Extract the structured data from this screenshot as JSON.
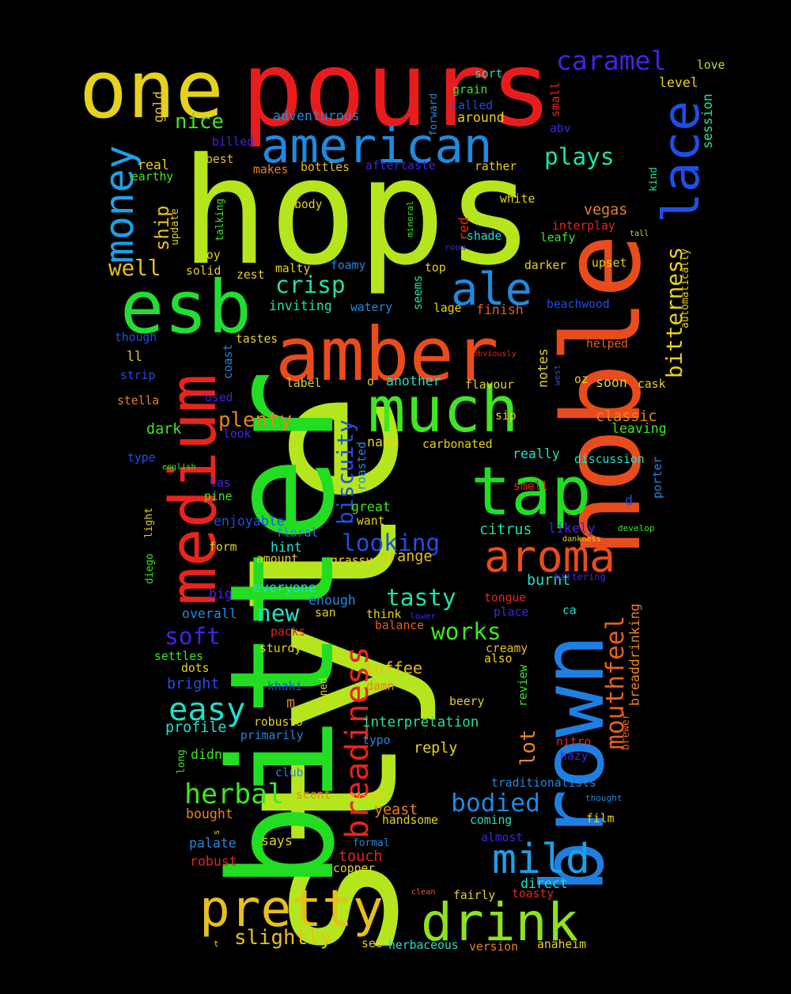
{
  "words": [
    {
      "text": "style",
      "color": "#b5e61d"
    },
    {
      "text": "bitter",
      "color": "#22dd22"
    },
    {
      "text": "hops",
      "color": "#b5e61d"
    },
    {
      "text": "noble",
      "color": "#e84c1c"
    },
    {
      "text": "pours",
      "color": "#e81c1c"
    },
    {
      "text": "amber",
      "color": "#e84c1c"
    },
    {
      "text": "brown",
      "color": "#1f7fe0"
    },
    {
      "text": "one",
      "color": "#e6d21c"
    },
    {
      "text": "esb",
      "color": "#22dd33"
    },
    {
      "text": "medium",
      "color": "#e8241c"
    },
    {
      "text": "tap",
      "color": "#22dd22"
    },
    {
      "text": "much",
      "color": "#3fe622"
    },
    {
      "text": "american",
      "color": "#1f8ae0"
    },
    {
      "text": "drink",
      "color": "#8fe21d"
    },
    {
      "text": "pretty",
      "color": "#e6c01c"
    },
    {
      "text": "lace",
      "color": "#1f4fe6"
    },
    {
      "text": "ale",
      "color": "#1f8ae0"
    },
    {
      "text": "aroma",
      "color": "#e84c1c"
    },
    {
      "text": "mild",
      "color": "#1fa0e6"
    },
    {
      "text": "money",
      "color": "#1fa0e6"
    },
    {
      "text": "breadiness",
      "color": "#e8241c"
    },
    {
      "text": "caramel",
      "color": "#4422e6"
    },
    {
      "text": "mouthfeel",
      "color": "#e8601c"
    },
    {
      "text": "bitterness",
      "color": "#e6d21c"
    },
    {
      "text": "easy",
      "color": "#1fe0cc"
    },
    {
      "text": "herbal",
      "color": "#3fe622"
    },
    {
      "text": "bodied",
      "color": "#1f8ae0"
    },
    {
      "text": "tasty",
      "color": "#1fe0aa"
    },
    {
      "text": "works",
      "color": "#3fe622"
    },
    {
      "text": "looking",
      "color": "#1f4fe6"
    },
    {
      "text": "biscuity",
      "color": "#1f4fe6"
    },
    {
      "text": "soft",
      "color": "#4422e6"
    },
    {
      "text": "new",
      "color": "#1fe0cc"
    },
    {
      "text": "plays",
      "color": "#1fe0aa"
    },
    {
      "text": "crisp",
      "color": "#1fe0aa"
    },
    {
      "text": "well",
      "color": "#e6c01c"
    },
    {
      "text": "slightly",
      "color": "#e6c01c"
    },
    {
      "text": "plenty",
      "color": "#e8841c"
    },
    {
      "text": "nice",
      "color": "#3fe622"
    },
    {
      "text": "lot",
      "color": "#e8841c"
    },
    {
      "text": "ship",
      "color": "#e6c01c"
    },
    {
      "text": "toffee",
      "color": "#e6c01c"
    },
    {
      "text": "classic",
      "color": "#e8841c"
    },
    {
      "text": "vegas",
      "color": "#e8841c"
    },
    {
      "text": "yeast",
      "color": "#e8841c"
    },
    {
      "text": "touch",
      "color": "#e8241c"
    },
    {
      "text": "reply",
      "color": "#e6d21c"
    },
    {
      "text": "breaddrinking",
      "color": "#e8841c"
    },
    {
      "text": "interpretation",
      "color": "#1fe0aa"
    },
    {
      "text": "m",
      "color": "#e8841c"
    },
    {
      "text": "dark",
      "color": "#3fe622"
    },
    {
      "text": "citrus",
      "color": "#1fe0aa"
    },
    {
      "text": "orange",
      "color": "#e6c01c"
    },
    {
      "text": "burnt",
      "color": "#1fe0cc"
    },
    {
      "text": "direct",
      "color": "#1fe0cc"
    },
    {
      "text": "traditionalists",
      "color": "#1f8ae0"
    },
    {
      "text": "adventurous",
      "color": "#1f8ae0"
    },
    {
      "text": "gold",
      "color": "#e6c01c"
    },
    {
      "text": "real",
      "color": "#e6d21c"
    },
    {
      "text": "around",
      "color": "#e6d21c"
    },
    {
      "text": "level",
      "color": "#e6d21c"
    },
    {
      "text": "session",
      "color": "#1fe0aa"
    },
    {
      "text": "kind",
      "color": "#1fe0aa"
    },
    {
      "text": "love",
      "color": "#b5e61d"
    },
    {
      "text": "sort",
      "color": "#1fe0aa"
    },
    {
      "text": "grain",
      "color": "#3fe622"
    },
    {
      "text": "called",
      "color": "#1f4fe6"
    },
    {
      "text": "forward",
      "color": "#1f8ae0"
    },
    {
      "text": "small",
      "color": "#e8241c"
    },
    {
      "text": "abv",
      "color": "#4422e6"
    },
    {
      "text": "best",
      "color": "#e6c01c"
    },
    {
      "text": "billed",
      "color": "#4422e6"
    },
    {
      "text": "earthy",
      "color": "#3fe622"
    },
    {
      "text": "makes",
      "color": "#e8841c"
    },
    {
      "text": "bottles",
      "color": "#e6c01c"
    },
    {
      "text": "aftertaste",
      "color": "#4422e6"
    },
    {
      "text": "rather",
      "color": "#e6d21c"
    },
    {
      "text": "update",
      "color": "#e6d21c"
    },
    {
      "text": "talking",
      "color": "#3fe622"
    },
    {
      "text": "body",
      "color": "#e6d21c"
    },
    {
      "text": "mineral",
      "color": "#3fe622"
    },
    {
      "text": "red",
      "color": "#e8241c"
    },
    {
      "text": "white",
      "color": "#e6d21c"
    },
    {
      "text": "interplay",
      "color": "#e8241c"
    },
    {
      "text": "leafy",
      "color": "#3fe622"
    },
    {
      "text": "tall",
      "color": "#e6d21c"
    },
    {
      "text": "automatically",
      "color": "#e6d21c"
    },
    {
      "text": "shade",
      "color": "#1fe0cc"
    },
    {
      "text": "room",
      "color": "#4422e6"
    },
    {
      "text": "joy",
      "color": "#e6d21c"
    },
    {
      "text": "solid",
      "color": "#e6d21c"
    },
    {
      "text": "zest",
      "color": "#e6d21c"
    },
    {
      "text": "malty",
      "color": "#e6d21c"
    },
    {
      "text": "foamy",
      "color": "#1f8ae0"
    },
    {
      "text": "top",
      "color": "#e6d21c"
    },
    {
      "text": "darker",
      "color": "#e6d21c"
    },
    {
      "text": "upset",
      "color": "#e6d21c"
    },
    {
      "text": "inviting",
      "color": "#1fe0aa"
    },
    {
      "text": "watery",
      "color": "#1f8ae0"
    },
    {
      "text": "seems",
      "color": "#1fe0aa"
    },
    {
      "text": "lage",
      "color": "#e6d21c"
    },
    {
      "text": "finish",
      "color": "#e8601c"
    },
    {
      "text": "beachwood",
      "color": "#1f4fe6"
    },
    {
      "text": "though",
      "color": "#1f4fe6"
    },
    {
      "text": "tastes",
      "color": "#e6d21c"
    },
    {
      "text": "coast",
      "color": "#1f8ae0"
    },
    {
      "text": "obviously",
      "color": "#e8241c"
    },
    {
      "text": "helped",
      "color": "#e8601c"
    },
    {
      "text": "west",
      "color": "#1f4fe6"
    },
    {
      "text": "notes",
      "color": "#e6d21c"
    },
    {
      "text": "ll",
      "color": "#e6d21c"
    },
    {
      "text": "strip",
      "color": "#1f4fe6"
    },
    {
      "text": "label",
      "color": "#e6d21c"
    },
    {
      "text": "o",
      "color": "#e6d21c"
    },
    {
      "text": "another",
      "color": "#1fe0cc"
    },
    {
      "text": "flavour",
      "color": "#e6d21c"
    },
    {
      "text": "oz",
      "color": "#e6d21c"
    },
    {
      "text": "soon",
      "color": "#e6d21c"
    },
    {
      "text": "cask",
      "color": "#e6d21c"
    },
    {
      "text": "stella",
      "color": "#e8841c"
    },
    {
      "text": "used",
      "color": "#4422e6"
    },
    {
      "text": "look",
      "color": "#4422e6"
    },
    {
      "text": "sip",
      "color": "#e6d21c"
    },
    {
      "text": "leaving",
      "color": "#3fe622"
    },
    {
      "text": "name",
      "color": "#e6d21c"
    },
    {
      "text": "carbonated",
      "color": "#e6d21c"
    },
    {
      "text": "roasted",
      "color": "#1f8ae0"
    },
    {
      "text": "type",
      "color": "#1f4fe6"
    },
    {
      "text": "english",
      "color": "#3fe622"
    },
    {
      "text": "really",
      "color": "#1fe0cc"
    },
    {
      "text": "discussion",
      "color": "#1fe0cc"
    },
    {
      "text": "porter",
      "color": "#1f8ae0"
    },
    {
      "text": "las",
      "color": "#4422e6"
    },
    {
      "text": "pine",
      "color": "#3fe622"
    },
    {
      "text": "great",
      "color": "#3fe622"
    },
    {
      "text": "smell",
      "color": "#e8241c"
    },
    {
      "text": "d",
      "color": "#1f4fe6"
    },
    {
      "text": "enjoyable",
      "color": "#1f4fe6"
    },
    {
      "text": "want",
      "color": "#e6d21c"
    },
    {
      "text": "floral",
      "color": "#1f8ae0"
    },
    {
      "text": "likely",
      "color": "#4422e6"
    },
    {
      "text": "develop",
      "color": "#3fe622"
    },
    {
      "text": "light",
      "color": "#e6d21c"
    },
    {
      "text": "diego",
      "color": "#3fe622"
    },
    {
      "text": "form",
      "color": "#e6d21c"
    },
    {
      "text": "hint",
      "color": "#1fe0cc"
    },
    {
      "text": "amount",
      "color": "#e6d21c"
    },
    {
      "text": "grassy",
      "color": "#e6d21c"
    },
    {
      "text": "dankness",
      "color": "#e6d21c"
    },
    {
      "text": "bittering",
      "color": "#4422e6"
    },
    {
      "text": "big",
      "color": "#4422e6"
    },
    {
      "text": "everyone",
      "color": "#1fe0cc"
    },
    {
      "text": "overall",
      "color": "#1f8ae0"
    },
    {
      "text": "enough",
      "color": "#1f8ae0"
    },
    {
      "text": "tongue",
      "color": "#e8241c"
    },
    {
      "text": "place",
      "color": "#4422e6"
    },
    {
      "text": "ca",
      "color": "#1fe0cc"
    },
    {
      "text": "san",
      "color": "#e6d21c"
    },
    {
      "text": "think",
      "color": "#e6d21c"
    },
    {
      "text": "lower",
      "color": "#4422e6"
    },
    {
      "text": "balance",
      "color": "#e8601c"
    },
    {
      "text": "packs",
      "color": "#e8241c"
    },
    {
      "text": "settles",
      "color": "#3fe622"
    },
    {
      "text": "sturdy",
      "color": "#e6d21c"
    },
    {
      "text": "creamy",
      "color": "#e6c01c"
    },
    {
      "text": "also",
      "color": "#e6d21c"
    },
    {
      "text": "dots",
      "color": "#e6d21c"
    },
    {
      "text": "bright",
      "color": "#1f4fe6"
    },
    {
      "text": "damn",
      "color": "#e8841c"
    },
    {
      "text": "review",
      "color": "#3fe622"
    },
    {
      "text": "khaki",
      "color": "#1f4fe6"
    },
    {
      "text": "toned",
      "color": "#e6d21c"
    },
    {
      "text": "beery",
      "color": "#e6d21c"
    },
    {
      "text": "profile",
      "color": "#1fe0cc"
    },
    {
      "text": "robusto",
      "color": "#e6d21c"
    },
    {
      "text": "primarily",
      "color": "#1f8ae0"
    },
    {
      "text": "typo",
      "color": "#1f8ae0"
    },
    {
      "text": "brewer",
      "color": "#e8601c"
    },
    {
      "text": "nitro",
      "color": "#e8241c"
    },
    {
      "text": "hazy",
      "color": "#4422e6"
    },
    {
      "text": "long",
      "color": "#3fe622"
    },
    {
      "text": "didn",
      "color": "#3fe622"
    },
    {
      "text": "club",
      "color": "#1f8ae0"
    },
    {
      "text": "scent",
      "color": "#e8841c"
    },
    {
      "text": "assume",
      "color": "#e6d21c"
    },
    {
      "text": "thought",
      "color": "#1f8ae0"
    },
    {
      "text": "bought",
      "color": "#e8841c"
    },
    {
      "text": "handsome",
      "color": "#e6d21c"
    },
    {
      "text": "coming",
      "color": "#1fe0cc"
    },
    {
      "text": "film",
      "color": "#e6d21c"
    },
    {
      "text": "s",
      "color": "#e6d21c"
    },
    {
      "text": "palate",
      "color": "#1f8ae0"
    },
    {
      "text": "says",
      "color": "#e6d21c"
    },
    {
      "text": "formal",
      "color": "#1f8ae0"
    },
    {
      "text": "almost",
      "color": "#4422e6"
    },
    {
      "text": "robust",
      "color": "#e8241c"
    },
    {
      "text": "copper",
      "color": "#e6d21c"
    },
    {
      "text": "clean",
      "color": "#e8601c"
    },
    {
      "text": "fairly",
      "color": "#e6d21c"
    },
    {
      "text": "toasty",
      "color": "#e8241c"
    },
    {
      "text": "t",
      "color": "#e6d21c"
    },
    {
      "text": "see",
      "color": "#e6d21c"
    },
    {
      "text": "herbaceous",
      "color": "#1fe0cc"
    },
    {
      "text": "version",
      "color": "#e8841c"
    },
    {
      "text": "anaheim",
      "color": "#e6d21c"
    }
  ]
}
